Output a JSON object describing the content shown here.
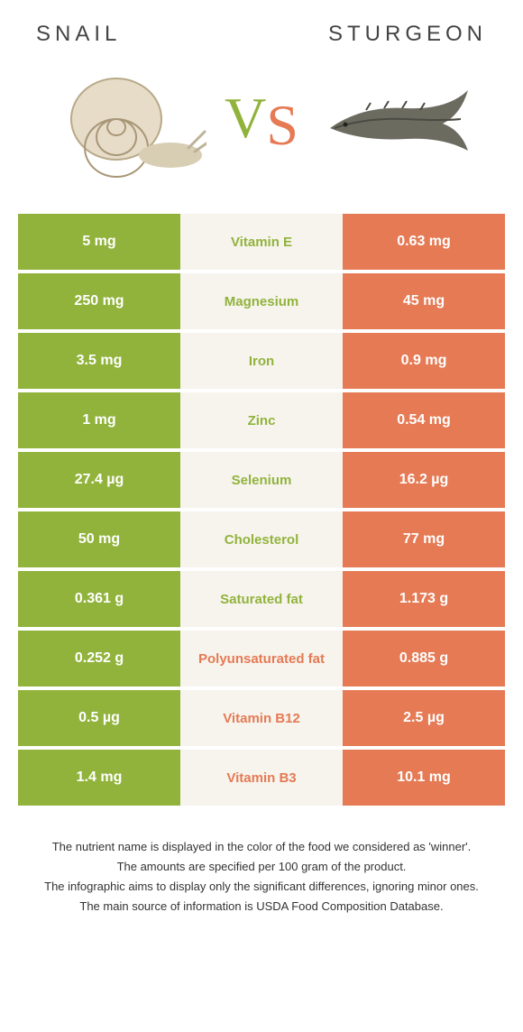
{
  "colors": {
    "left": "#91b33c",
    "right": "#e57a54",
    "mid_bg": "#f7f4ee",
    "title_text": "#444444"
  },
  "food_left": "SNAIL",
  "food_right": "STURGEON",
  "vs_v": "V",
  "vs_s": "S",
  "rows": [
    {
      "left": "5 mg",
      "label": "Vitamin E",
      "right": "0.63 mg",
      "winner": "left"
    },
    {
      "left": "250 mg",
      "label": "Magnesium",
      "right": "45 mg",
      "winner": "left"
    },
    {
      "left": "3.5 mg",
      "label": "Iron",
      "right": "0.9 mg",
      "winner": "left"
    },
    {
      "left": "1 mg",
      "label": "Zinc",
      "right": "0.54 mg",
      "winner": "left"
    },
    {
      "left": "27.4 µg",
      "label": "Selenium",
      "right": "16.2 µg",
      "winner": "left"
    },
    {
      "left": "50 mg",
      "label": "Cholesterol",
      "right": "77 mg",
      "winner": "left"
    },
    {
      "left": "0.361 g",
      "label": "Saturated fat",
      "right": "1.173 g",
      "winner": "left"
    },
    {
      "left": "0.252 g",
      "label": "Polyunsaturated fat",
      "right": "0.885 g",
      "winner": "right"
    },
    {
      "left": "0.5 µg",
      "label": "Vitamin B12",
      "right": "2.5 µg",
      "winner": "right"
    },
    {
      "left": "1.4 mg",
      "label": "Vitamin B3",
      "right": "10.1 mg",
      "winner": "right"
    }
  ],
  "footer": [
    "The nutrient name is displayed in the color of the food we considered as 'winner'.",
    "The amounts are specified per 100 gram of the product.",
    "The infographic aims to display only the significant differences, ignoring minor ones.",
    "The main source of information is USDA Food Composition Database."
  ]
}
